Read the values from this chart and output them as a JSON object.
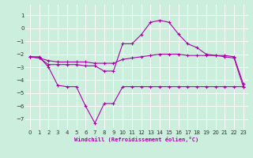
{
  "xlabel": "Windchill (Refroidissement éolien,°C)",
  "bg_color": "#cceedd",
  "line_color": "#aa00aa",
  "grid_color": "#ffffff",
  "xlim": [
    -0.5,
    23.5
  ],
  "ylim": [
    -7.8,
    1.8
  ],
  "yticks": [
    1,
    0,
    -1,
    -2,
    -3,
    -4,
    -5,
    -6,
    -7
  ],
  "xticks": [
    0,
    1,
    2,
    3,
    4,
    5,
    6,
    7,
    8,
    9,
    10,
    11,
    12,
    13,
    14,
    15,
    16,
    17,
    18,
    19,
    20,
    21,
    22,
    23
  ],
  "line1_x": [
    0,
    1,
    2,
    3,
    4,
    5,
    6,
    7,
    8,
    9,
    10,
    11,
    12,
    13,
    14,
    15,
    16,
    17,
    18,
    19,
    20,
    21,
    22,
    23
  ],
  "line1_y": [
    -2.2,
    -2.3,
    -2.8,
    -2.8,
    -2.8,
    -2.8,
    -2.9,
    -2.9,
    -3.3,
    -3.3,
    -1.2,
    -1.2,
    -0.5,
    0.45,
    0.6,
    0.45,
    -0.45,
    -1.2,
    -1.5,
    -2.0,
    -2.1,
    -2.1,
    -2.2,
    -4.3
  ],
  "line2_x": [
    0,
    1,
    2,
    3,
    4,
    5,
    6,
    7,
    8,
    9,
    10,
    11,
    12,
    13,
    14,
    15,
    16,
    17,
    18,
    19,
    20,
    21,
    22,
    23
  ],
  "line2_y": [
    -2.2,
    -2.3,
    -2.5,
    -2.6,
    -2.6,
    -2.6,
    -2.6,
    -2.7,
    -2.7,
    -2.7,
    -2.4,
    -2.3,
    -2.2,
    -2.1,
    -2.0,
    -2.0,
    -2.0,
    -2.1,
    -2.1,
    -2.1,
    -2.1,
    -2.2,
    -2.3,
    -4.5
  ],
  "line3_x": [
    0,
    1,
    2,
    3,
    4,
    5,
    6,
    7,
    8,
    9,
    10,
    11,
    12,
    13,
    14,
    15,
    16,
    17,
    18,
    19,
    20,
    21,
    22,
    23
  ],
  "line3_y": [
    -2.2,
    -2.2,
    -3.0,
    -4.4,
    -4.5,
    -4.5,
    -6.0,
    -7.3,
    -5.8,
    -5.8,
    -4.5,
    -4.5,
    -4.5,
    -4.5,
    -4.5,
    -4.5,
    -4.5,
    -4.5,
    -4.5,
    -4.5,
    -4.5,
    -4.5,
    -4.5,
    -4.5
  ]
}
